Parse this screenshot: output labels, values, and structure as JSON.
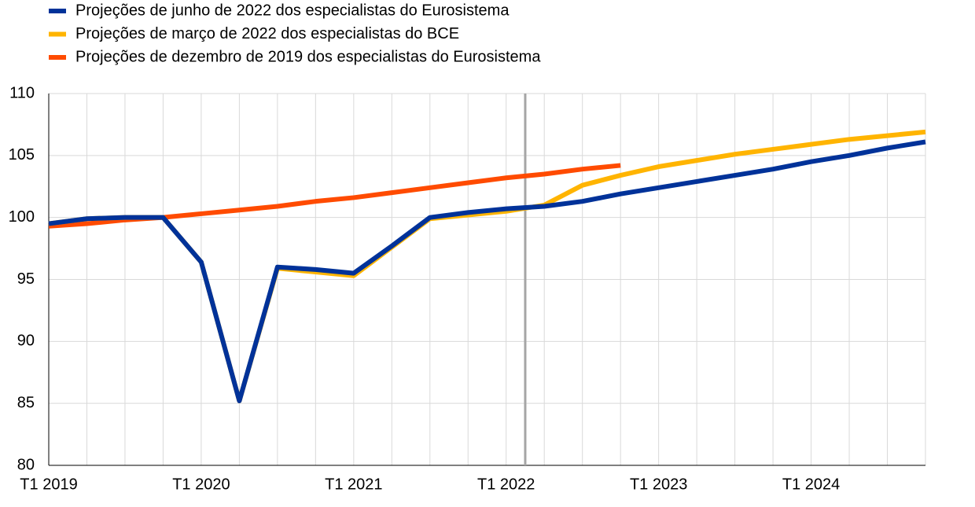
{
  "chart_data": {
    "type": "line",
    "categories": [
      "T1 2019",
      null,
      null,
      null,
      "T1 2020",
      null,
      null,
      null,
      "T1 2021",
      null,
      null,
      null,
      "T1 2022",
      null,
      null,
      null,
      "T1 2023",
      null,
      null,
      null,
      "T1 2024",
      null,
      null,
      null
    ],
    "series": [
      {
        "name": "Projeções de junho de 2022 dos especialistas do Eurosistema",
        "color": "#003299",
        "values": [
          99.5,
          99.9,
          100.0,
          100.0,
          96.4,
          85.2,
          96.0,
          95.8,
          95.5,
          97.7,
          100.0,
          100.4,
          100.7,
          100.9,
          101.3,
          101.9,
          102.4,
          102.9,
          103.4,
          103.9,
          104.5,
          105.0,
          105.6,
          106.1
        ]
      },
      {
        "name": "Projeções de março de 2022 dos especialistas do BCE",
        "color": "#ffb400",
        "values": [
          99.5,
          99.9,
          100.0,
          100.0,
          96.4,
          85.2,
          95.9,
          95.6,
          95.3,
          97.6,
          99.9,
          100.2,
          100.5,
          101.0,
          102.6,
          103.4,
          104.1,
          104.6,
          105.1,
          105.5,
          105.9,
          106.3,
          106.6,
          106.9
        ]
      },
      {
        "name": "Projeções de dezembro de 2019 dos especialistas do Eurosistema",
        "color": "#ff4b00",
        "values": [
          99.3,
          99.5,
          99.8,
          100.0,
          100.3,
          100.6,
          100.9,
          101.3,
          101.6,
          102.0,
          102.4,
          102.8,
          103.2,
          103.5,
          103.9,
          104.2,
          null,
          null,
          null,
          null,
          null,
          null,
          null,
          null
        ]
      }
    ],
    "ylim": [
      80,
      110
    ],
    "yticks": [
      80,
      85,
      90,
      95,
      100,
      105,
      110
    ],
    "grid": true
  }
}
